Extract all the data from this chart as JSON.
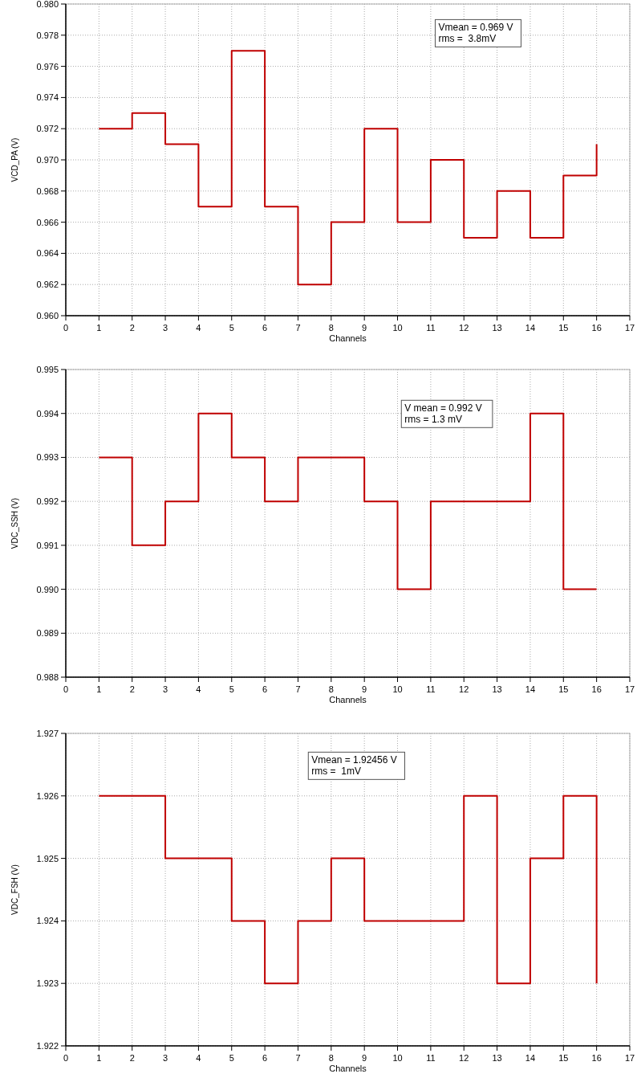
{
  "chart_data": [
    {
      "type": "step",
      "xlabel": "Channels",
      "ylabel": "VCD_PA (V)",
      "x": [
        1,
        2,
        3,
        4,
        5,
        6,
        7,
        8,
        9,
        10,
        11,
        12,
        13,
        14,
        15,
        16
      ],
      "series": [
        {
          "color": "#c00000",
          "values": [
            0.972,
            0.973,
            0.971,
            0.967,
            0.977,
            0.967,
            0.962,
            0.966,
            0.972,
            0.966,
            0.97,
            0.965,
            0.968,
            0.965,
            0.969,
            0.971
          ]
        }
      ],
      "xlim": [
        0,
        17
      ],
      "xticks": [
        0,
        1,
        2,
        3,
        4,
        5,
        6,
        7,
        8,
        9,
        10,
        11,
        12,
        13,
        14,
        15,
        16,
        17
      ],
      "ylim": [
        0.96,
        0.98
      ],
      "yticks": [
        {
          "value": 0.96,
          "label": "0.960"
        },
        {
          "value": 0.962,
          "label": "0.962"
        },
        {
          "value": 0.964,
          "label": "0.964"
        },
        {
          "value": 0.966,
          "label": "0.966"
        },
        {
          "value": 0.968,
          "label": "0.968"
        },
        {
          "value": 0.97,
          "label": "0.970"
        },
        {
          "value": 0.972,
          "label": "0.972"
        },
        {
          "value": 0.974,
          "label": "0.974"
        },
        {
          "value": 0.976,
          "label": "0.976"
        },
        {
          "value": 0.978,
          "label": "0.978"
        },
        {
          "value": 0.98,
          "label": "0.980"
        }
      ],
      "grid": true,
      "marker": "none",
      "line_style": "solid",
      "annotations": [
        "Vmean = 0.969 V",
        "rms =  3.8mV"
      ]
    },
    {
      "type": "step",
      "xlabel": "Channels",
      "ylabel": "VDC_SSH (V)",
      "x": [
        1,
        2,
        3,
        4,
        5,
        6,
        7,
        8,
        9,
        10,
        11,
        12,
        13,
        14,
        15,
        16
      ],
      "series": [
        {
          "color": "#c00000",
          "values": [
            0.993,
            0.991,
            0.992,
            0.994,
            0.993,
            0.992,
            0.993,
            0.993,
            0.992,
            0.99,
            0.992,
            0.992,
            0.992,
            0.994,
            0.99,
            0.99
          ]
        }
      ],
      "xlim": [
        0,
        17
      ],
      "xticks": [
        0,
        1,
        2,
        3,
        4,
        5,
        6,
        7,
        8,
        9,
        10,
        11,
        12,
        13,
        14,
        15,
        16,
        17
      ],
      "ylim": [
        0.988,
        0.995
      ],
      "yticks": [
        0.988,
        0.989,
        {
          "value": 0.99,
          "label": "0.990"
        },
        0.991,
        0.992,
        0.993,
        0.994,
        0.995
      ],
      "grid": true,
      "marker": "none",
      "line_style": "solid",
      "annotations": [
        "V mean = 0.992 V",
        "rms = 1.3 mV"
      ]
    },
    {
      "type": "step",
      "xlabel": "Channels",
      "ylabel": "VDC_FSH (V)",
      "x": [
        1,
        2,
        3,
        4,
        5,
        6,
        7,
        8,
        9,
        10,
        11,
        12,
        13,
        14,
        15,
        16
      ],
      "series": [
        {
          "color": "#c00000",
          "values": [
            1.926,
            1.926,
            1.925,
            1.925,
            1.924,
            1.923,
            1.924,
            1.925,
            1.924,
            1.924,
            1.924,
            1.926,
            1.923,
            1.925,
            1.926,
            1.923
          ]
        }
      ],
      "xlim": [
        0,
        17
      ],
      "xticks": [
        0,
        1,
        2,
        3,
        4,
        5,
        6,
        7,
        8,
        9,
        10,
        11,
        12,
        13,
        14,
        15,
        16,
        17
      ],
      "ylim": [
        1.922,
        1.927
      ],
      "yticks": [
        1.922,
        1.923,
        1.924,
        1.925,
        1.926,
        1.927
      ],
      "grid": true,
      "marker": "none",
      "line_style": "solid",
      "annotations": [
        "Vmean = 1.92456 V",
        "rms =  1mV"
      ]
    }
  ]
}
